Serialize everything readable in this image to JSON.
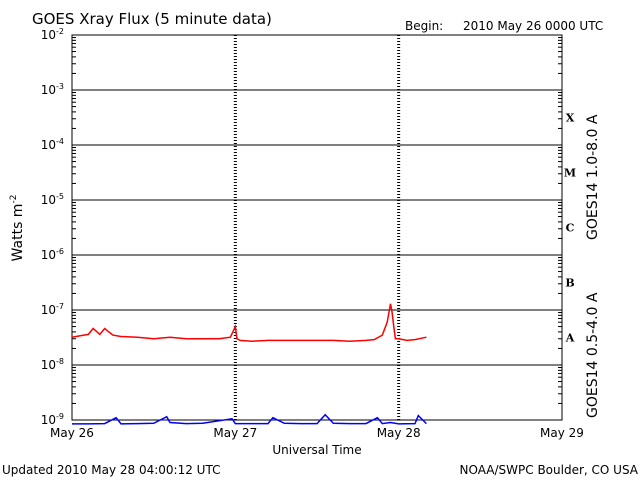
{
  "header": {
    "title": "GOES Xray Flux (5 minute data)",
    "begin_label": "Begin:",
    "begin_value": "2010 May 26 0000 UTC"
  },
  "footer": {
    "updated": "Updated 2010 May 28 04:00:12 UTC",
    "credit": "NOAA/SWPC Boulder, CO USA"
  },
  "chart_data": {
    "type": "line",
    "title": "GOES Xray Flux (5 minute data)",
    "xlabel": "Universal Time",
    "ylabel": "Watts m",
    "ylabel_superscript": "-2",
    "y_scale": "log",
    "ylim": [
      1e-09,
      0.01
    ],
    "y_ticks": [
      {
        "base": "10",
        "exp": "-2",
        "value": 0.01
      },
      {
        "base": "10",
        "exp": "-3",
        "value": 0.001
      },
      {
        "base": "10",
        "exp": "-4",
        "value": 0.0001
      },
      {
        "base": "10",
        "exp": "-5",
        "value": 1e-05
      },
      {
        "base": "10",
        "exp": "-6",
        "value": 1e-06
      },
      {
        "base": "10",
        "exp": "-7",
        "value": 1e-07
      },
      {
        "base": "10",
        "exp": "-8",
        "value": 1e-08
      },
      {
        "base": "10",
        "exp": "-9",
        "value": 1e-09
      }
    ],
    "x_ticks": [
      {
        "label": "May 26",
        "day": 0
      },
      {
        "label": "May 27",
        "day": 1
      },
      {
        "label": "May 28",
        "day": 2
      },
      {
        "label": "May 29",
        "day": 3
      }
    ],
    "xlim": [
      0,
      3
    ],
    "flare_classes": [
      {
        "label": "X",
        "value": 0.000316
      },
      {
        "label": "M",
        "value": 3.16e-05
      },
      {
        "label": "C",
        "value": 3.16e-06
      },
      {
        "label": "B",
        "value": 3.16e-07
      },
      {
        "label": "A",
        "value": 3.16e-08
      }
    ],
    "series": [
      {
        "name": "GOES14 1.0-8.0 A",
        "color": "#ff0000",
        "x": [
          0.0,
          0.05,
          0.1,
          0.13,
          0.17,
          0.2,
          0.25,
          0.3,
          0.4,
          0.5,
          0.6,
          0.7,
          0.8,
          0.9,
          0.97,
          1.0,
          1.01,
          1.03,
          1.1,
          1.2,
          1.3,
          1.4,
          1.5,
          1.6,
          1.7,
          1.8,
          1.85,
          1.9,
          1.93,
          1.95,
          1.96,
          1.97,
          1.98,
          2.0,
          2.05,
          2.1,
          2.17
        ],
        "values": [
          3.2e-08,
          3.4e-08,
          3.6e-08,
          4.6e-08,
          3.6e-08,
          4.6e-08,
          3.5e-08,
          3.3e-08,
          3.2e-08,
          3e-08,
          3.2e-08,
          3e-08,
          3e-08,
          3e-08,
          3.2e-08,
          5e-08,
          3e-08,
          2.8e-08,
          2.7e-08,
          2.8e-08,
          2.8e-08,
          2.8e-08,
          2.8e-08,
          2.8e-08,
          2.7e-08,
          2.8e-08,
          2.9e-08,
          3.5e-08,
          6e-08,
          1.3e-07,
          9e-08,
          5e-08,
          3e-08,
          3e-08,
          2.8e-08,
          2.9e-08,
          3.2e-08
        ]
      },
      {
        "name": "GOES14 0.5-4.0 A",
        "color": "#0000ff",
        "x": [
          0.0,
          0.1,
          0.2,
          0.27,
          0.3,
          0.4,
          0.5,
          0.58,
          0.6,
          0.7,
          0.8,
          0.98,
          1.0,
          1.2,
          1.23,
          1.3,
          1.4,
          1.5,
          1.55,
          1.6,
          1.7,
          1.8,
          1.87,
          1.9,
          1.95,
          2.0,
          2.1,
          2.12,
          2.17
        ],
        "values": [
          8.5e-10,
          8.5e-10,
          8.6e-10,
          1.1e-09,
          8.5e-10,
          8.6e-10,
          8.7e-10,
          1.15e-09,
          9e-10,
          8.6e-10,
          8.7e-10,
          1.05e-09,
          8.6e-10,
          8.6e-10,
          1.1e-09,
          8.7e-10,
          8.6e-10,
          8.6e-10,
          1.25e-09,
          8.7e-10,
          8.6e-10,
          8.6e-10,
          1.1e-09,
          8.6e-10,
          9e-10,
          8.5e-10,
          8.6e-10,
          1.2e-09,
          8.6e-10
        ]
      }
    ]
  }
}
